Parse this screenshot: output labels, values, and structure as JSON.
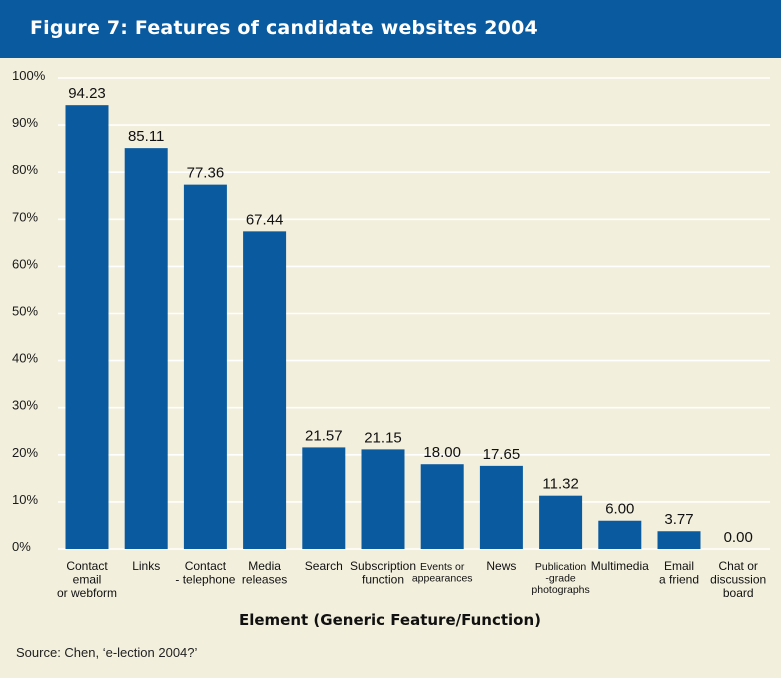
{
  "header": {
    "title": "Figure 7: Features of candidate websites 2004"
  },
  "footer": {
    "source": "Source: Chen, ‘e-lection 2004?’"
  },
  "colors": {
    "bar": "#0a5aa0",
    "title_bar": "#0a5aa0",
    "background": "#f2efdd",
    "gridline": "#ffffff"
  },
  "chart_data": {
    "type": "bar",
    "title": "Figure 7: Features of candidate websites 2004",
    "xlabel": "Element (Generic Feature/Function)",
    "ylabel": "",
    "ylim": [
      0,
      100
    ],
    "yticks": [
      "0%",
      "10%",
      "20%",
      "30%",
      "40%",
      "50%",
      "60%",
      "70%",
      "80%",
      "90%",
      "100%"
    ],
    "grid": true,
    "categories": [
      [
        "Contact",
        "email",
        "or webform"
      ],
      [
        "Links"
      ],
      [
        "Contact",
        "- telephone"
      ],
      [
        "Media",
        "releases"
      ],
      [
        "Search"
      ],
      [
        "Subscription",
        "function"
      ],
      [
        "Events or",
        "appearances"
      ],
      [
        "News"
      ],
      [
        "Publication",
        "-grade",
        "photographs"
      ],
      [
        "Multimedia"
      ],
      [
        "Email",
        "a friend"
      ],
      [
        "Chat or",
        "discussion",
        "board"
      ]
    ],
    "values": [
      94.23,
      85.11,
      77.36,
      67.44,
      21.57,
      21.15,
      18.0,
      17.65,
      11.32,
      6.0,
      3.77,
      0.0
    ],
    "value_labels": [
      "94.23",
      "85.11",
      "77.36",
      "67.44",
      "21.57",
      "21.15",
      "18.00",
      "17.65",
      "11.32",
      "6.00",
      "3.77",
      "0.00"
    ]
  }
}
